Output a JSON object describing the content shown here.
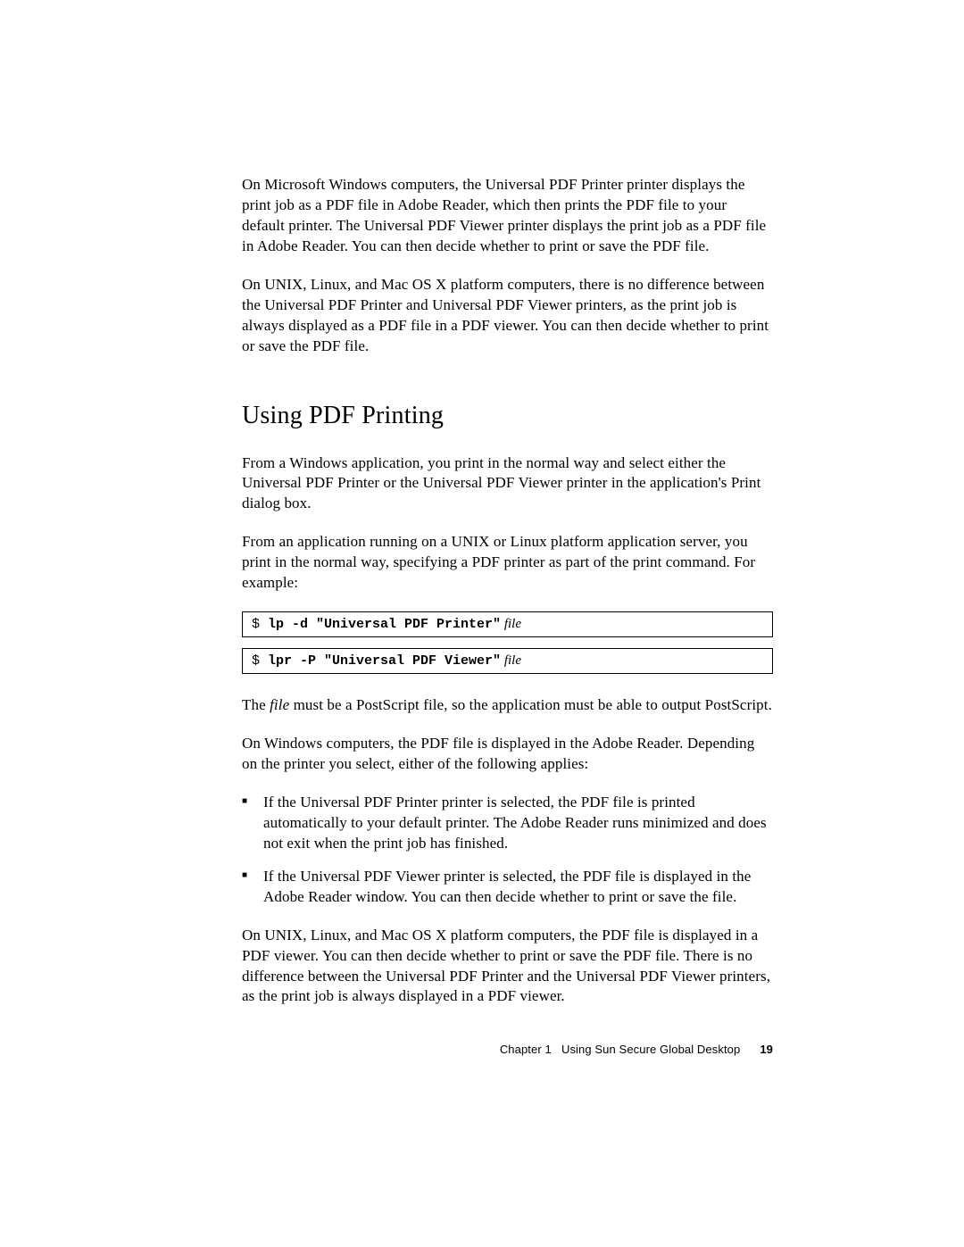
{
  "paragraphs": {
    "p1": "On Microsoft Windows computers, the Universal PDF Printer printer displays the print job as a PDF file in Adobe Reader, which then prints the PDF file to your default printer. The Universal PDF Viewer printer displays the print job as a PDF file in Adobe Reader. You can then decide whether to print or save the PDF file.",
    "p2": "On UNIX, Linux, and Mac OS X platform computers, there is no difference between the Universal PDF Printer and Universal PDF Viewer printers, as the print job is always displayed as a PDF file in a PDF viewer. You can then decide whether to print or save the PDF file.",
    "p3": "From a Windows application, you print in the normal way and select either the Universal PDF Printer or the Universal PDF Viewer printer in the application's Print dialog box.",
    "p4": "From an application running on a UNIX or Linux platform application server, you print in the normal way, specifying a PDF printer as part of the print command. For example:",
    "p5_pre": "The ",
    "p5_italic": "file",
    "p5_post": " must be a PostScript file, so the application must be able to output PostScript.",
    "p6": "On Windows computers, the PDF file is displayed in the Adobe Reader. Depending on the printer you select, either of the following applies:",
    "p7": "On UNIX, Linux, and Mac OS X platform computers, the PDF file is displayed in a PDF viewer. You can then decide whether to print or save the PDF file. There is no difference between the Universal PDF Printer and the Universal PDF Viewer printers, as the print job is always displayed in a PDF viewer."
  },
  "heading": "Using PDF Printing",
  "code1": {
    "prompt": "$ ",
    "bold": "lp -d \"Universal PDF Printer\"",
    "italic": " file"
  },
  "code2": {
    "prompt": "$ ",
    "bold": "lpr -P \"Universal PDF Viewer\"",
    "italic": " file"
  },
  "bullets": {
    "b1": "If the Universal PDF Printer printer is selected, the PDF file is printed automatically to your default printer. The Adobe Reader runs minimized and does not exit when the print job has finished.",
    "b2": "If the Universal PDF Viewer printer is selected, the PDF file is displayed in the Adobe Reader window. You can then decide whether to print or save the file."
  },
  "footer": {
    "chapter": "Chapter 1",
    "title": "Using Sun Secure Global Desktop",
    "page": "19"
  }
}
